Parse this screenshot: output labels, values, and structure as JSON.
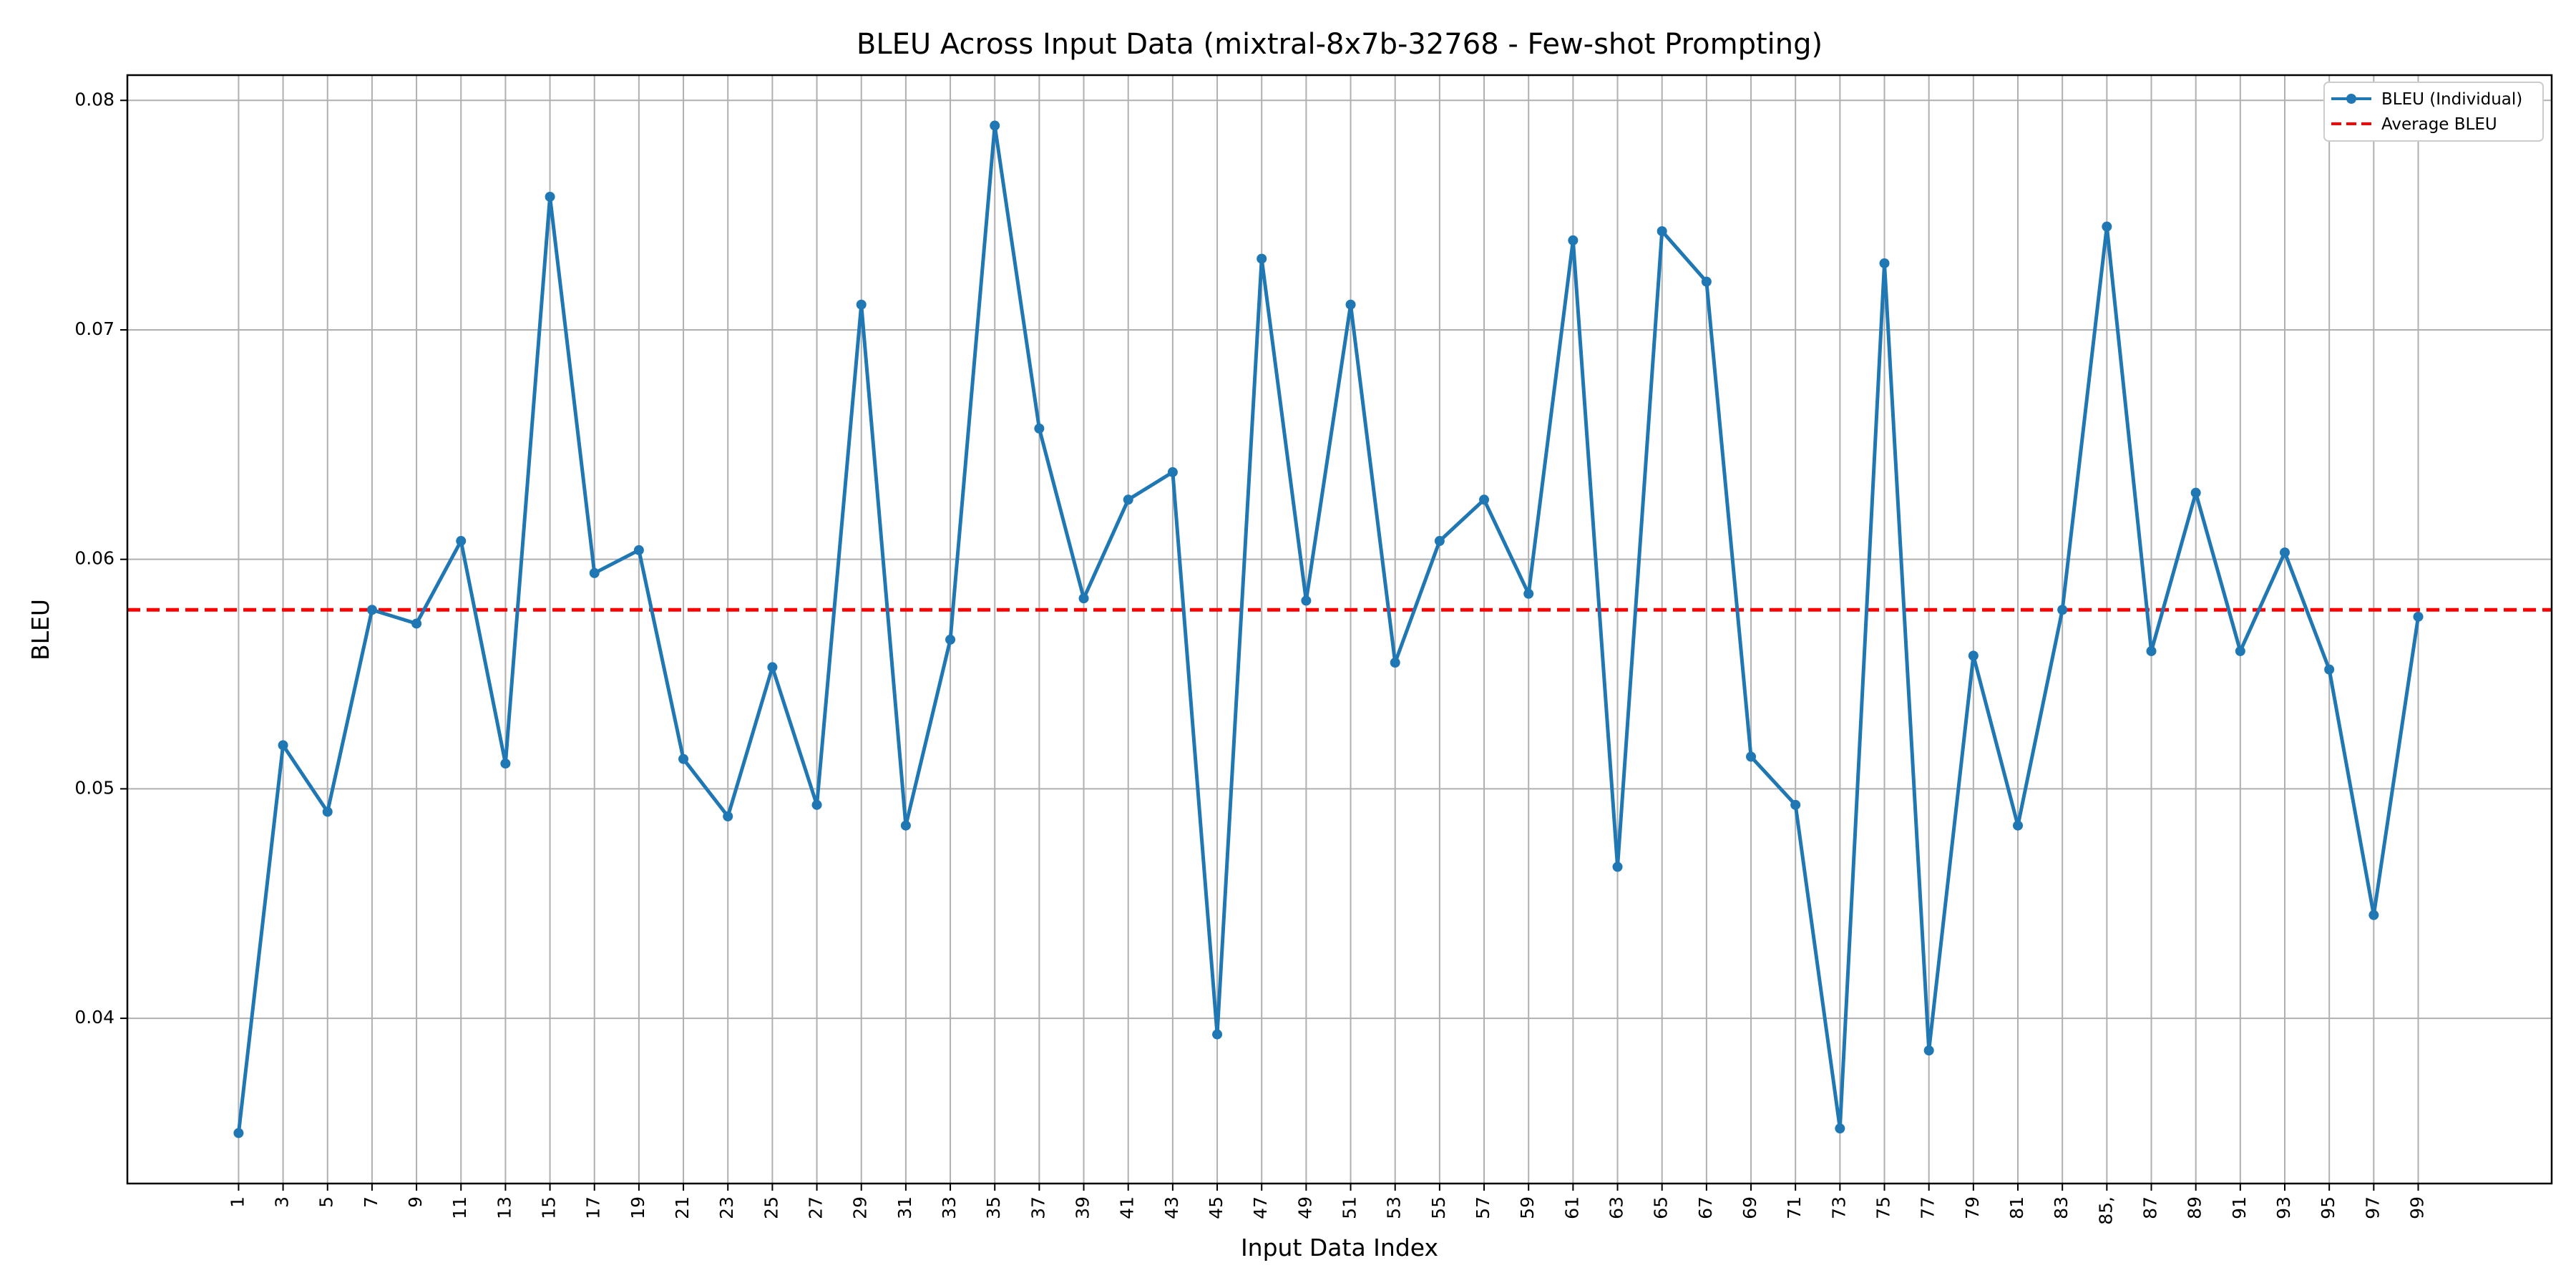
{
  "chart_data": {
    "type": "line",
    "title": "BLEU Across Input Data (mixtral-8x7b-32768 - Few-shot Prompting)",
    "xlabel": "Input Data Index",
    "ylabel": "BLEU",
    "x": [
      1,
      3,
      5,
      7,
      9,
      11,
      13,
      15,
      17,
      19,
      21,
      23,
      25,
      27,
      29,
      31,
      33,
      35,
      37,
      39,
      41,
      43,
      45,
      47,
      49,
      51,
      53,
      55,
      57,
      59,
      61,
      63,
      65,
      67,
      69,
      71,
      73,
      75,
      77,
      79,
      81,
      83,
      85,
      87,
      89,
      91,
      93,
      95,
      97,
      99
    ],
    "xticks": [
      "1",
      "3",
      "5",
      "7",
      "9",
      "11",
      "13",
      "15",
      "17",
      "19",
      "21",
      "23",
      "25",
      "27",
      "29",
      "31",
      "33",
      "35",
      "37",
      "39",
      "41",
      "43",
      "45",
      "47",
      "49",
      "51",
      "53",
      "55",
      "57",
      "59",
      "61",
      "63",
      "65",
      "67",
      "69",
      "71",
      "73",
      "75",
      "77",
      "79",
      "81",
      "83",
      "85,",
      "87",
      "89",
      "91",
      "93",
      "95",
      "97",
      "99"
    ],
    "yticks": [
      "0.04",
      "0.05",
      "0.06",
      "0.07",
      "0.08"
    ],
    "ytick_values": [
      0.04,
      0.05,
      0.06,
      0.07,
      0.08
    ],
    "xlim": [
      -4,
      105
    ],
    "ylim": [
      0.0328,
      0.0811
    ],
    "series": [
      {
        "name": "BLEU (Individual)",
        "color": "#1f77b4",
        "values": [
          0.035,
          0.0519,
          0.049,
          0.0578,
          0.0572,
          0.0608,
          0.0511,
          0.0758,
          0.0594,
          0.0604,
          0.0513,
          0.0488,
          0.0553,
          0.0493,
          0.0711,
          0.0484,
          0.0565,
          0.0789,
          0.0657,
          0.0583,
          0.0626,
          0.0638,
          0.0393,
          0.0731,
          0.0582,
          0.0711,
          0.0555,
          0.0608,
          0.0626,
          0.0585,
          0.0739,
          0.0466,
          0.0743,
          0.0721,
          0.0514,
          0.0493,
          0.0352,
          0.0729,
          0.0386,
          0.0558,
          0.0484,
          0.0578,
          0.0745,
          0.056,
          0.0629,
          0.056,
          0.0603,
          0.0552,
          0.0445,
          0.0575
        ]
      }
    ],
    "average": {
      "name": "Average BLEU",
      "value": 0.0578,
      "color": "#ff0000"
    },
    "legend": {
      "position": "top-right",
      "entries": [
        "BLEU (Individual)",
        "Average BLEU"
      ]
    },
    "grid": true
  }
}
